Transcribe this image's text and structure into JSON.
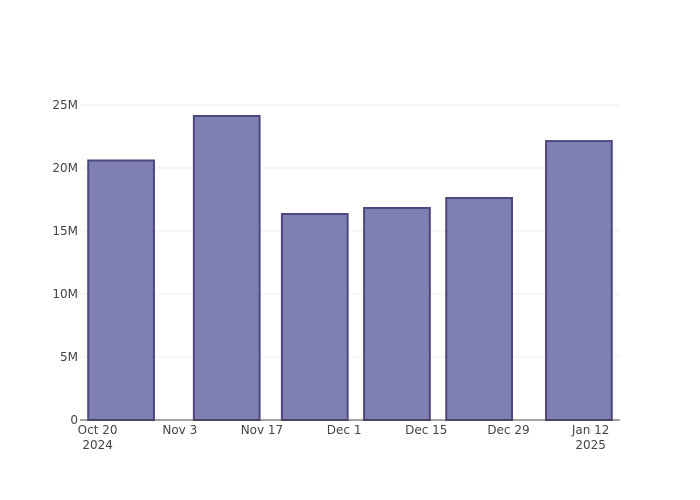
{
  "chart_data": {
    "type": "bar",
    "x": [
      "2024-10-24",
      "2024-11-11",
      "2024-11-26",
      "2024-12-10",
      "2024-12-24",
      "2025-01-10"
    ],
    "values": [
      20600000,
      24130000,
      16350000,
      16830000,
      17620000,
      22140000
    ],
    "color": "#807fb1",
    "edge_color": "#4b477f",
    "xlim": [
      "2024-10-17",
      "2025-01-17"
    ],
    "xticks": [
      {
        "value": "2024-10-20",
        "label": [
          "Oct 20",
          "2024"
        ]
      },
      {
        "value": "2024-11-03",
        "label": [
          "Nov 3"
        ]
      },
      {
        "value": "2024-11-17",
        "label": [
          "Nov 17"
        ]
      },
      {
        "value": "2024-12-01",
        "label": [
          "Dec 1"
        ]
      },
      {
        "value": "2024-12-15",
        "label": [
          "Dec 15"
        ]
      },
      {
        "value": "2024-12-29",
        "label": [
          "Dec 29"
        ]
      },
      {
        "value": "2025-01-12",
        "label": [
          "Jan 12",
          "2025"
        ]
      }
    ],
    "ylim": [
      0,
      25400000
    ],
    "yticks": [
      0,
      {
        "value": 5000000,
        "label": "5M"
      },
      {
        "value": 10000000,
        "label": "10M"
      },
      {
        "value": 15000000,
        "label": "15M"
      },
      {
        "value": 20000000,
        "label": "20M"
      },
      {
        "value": 25000000,
        "label": "25M"
      }
    ],
    "grid": true
  }
}
